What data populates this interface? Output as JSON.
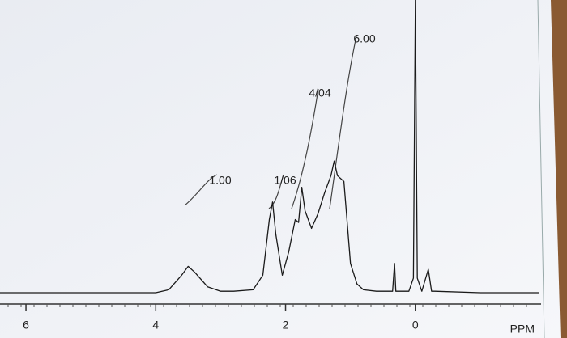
{
  "chart_data": {
    "type": "line",
    "x_label": "PPM",
    "x": [
      6.4,
      5.5,
      5.0,
      4.5,
      4.0,
      3.8,
      3.6,
      3.5,
      3.4,
      3.2,
      3.0,
      2.8,
      2.5,
      2.35,
      2.25,
      2.2,
      2.15,
      2.05,
      1.95,
      1.85,
      1.8,
      1.75,
      1.7,
      1.6,
      1.5,
      1.4,
      1.3,
      1.25,
      1.2,
      1.1,
      1.0,
      0.9,
      0.8,
      0.6,
      0.35,
      0.32,
      0.3,
      0.1,
      0.03,
      0.0,
      -0.03,
      -0.1,
      -0.2,
      -0.25,
      -0.3,
      -1.0,
      -1.9
    ],
    "series": [
      {
        "color": "#1a1a1a",
        "values": [
          0,
          0,
          0,
          0,
          0,
          1,
          6,
          9,
          7,
          2,
          0.5,
          0.5,
          1,
          6,
          25,
          31,
          20,
          6,
          14,
          25,
          24,
          36,
          28,
          22,
          27,
          34,
          40,
          45,
          40,
          38,
          10,
          3,
          1,
          0.5,
          0.5,
          10,
          0.5,
          0.5,
          5,
          100,
          5,
          0.5,
          8,
          0.5,
          0.5,
          0,
          0
        ]
      }
    ],
    "xlim": [
      6.4,
      -1.9
    ],
    "xticks": [
      6,
      4,
      2,
      0
    ],
    "ylim": [
      0,
      100
    ],
    "annotations": [
      "1.00",
      "1/06",
      "4/04",
      "6.00"
    ]
  }
}
